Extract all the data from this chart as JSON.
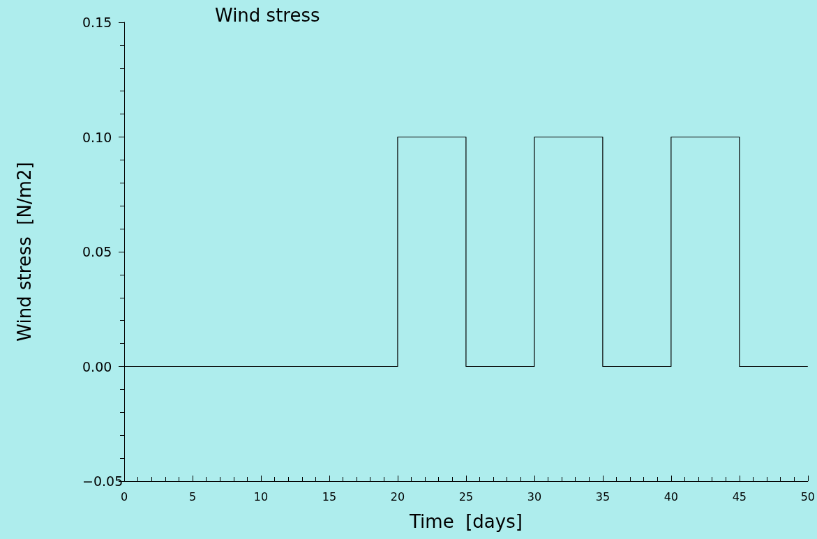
{
  "chart_data": {
    "type": "step",
    "title": "Wind stress",
    "xlabel": "Time  [days]",
    "ylabel": "Wind stress  [N/m2]",
    "x": [
      0,
      20,
      25,
      30,
      35,
      40,
      45,
      50
    ],
    "series": [
      {
        "color": "#000000",
        "values": [
          0,
          0.1,
          0,
          0.1,
          0,
          0.1,
          0,
          0
        ]
      }
    ],
    "xlim": [
      0,
      50
    ],
    "xticks": [
      0,
      5,
      10,
      15,
      20,
      25,
      30,
      35,
      40,
      45,
      50
    ],
    "ylim": [
      -0.05,
      0.15
    ],
    "yticks": [
      {
        "value": -0.05,
        "label": "−0.05"
      },
      {
        "value": 0,
        "label": "0.00"
      },
      {
        "value": 0.05,
        "label": "0.05"
      },
      {
        "value": 0.1,
        "label": "0.10"
      },
      {
        "value": 0.15,
        "label": "0.15"
      }
    ],
    "grid": false,
    "marker": "none",
    "line_style": "solid"
  }
}
